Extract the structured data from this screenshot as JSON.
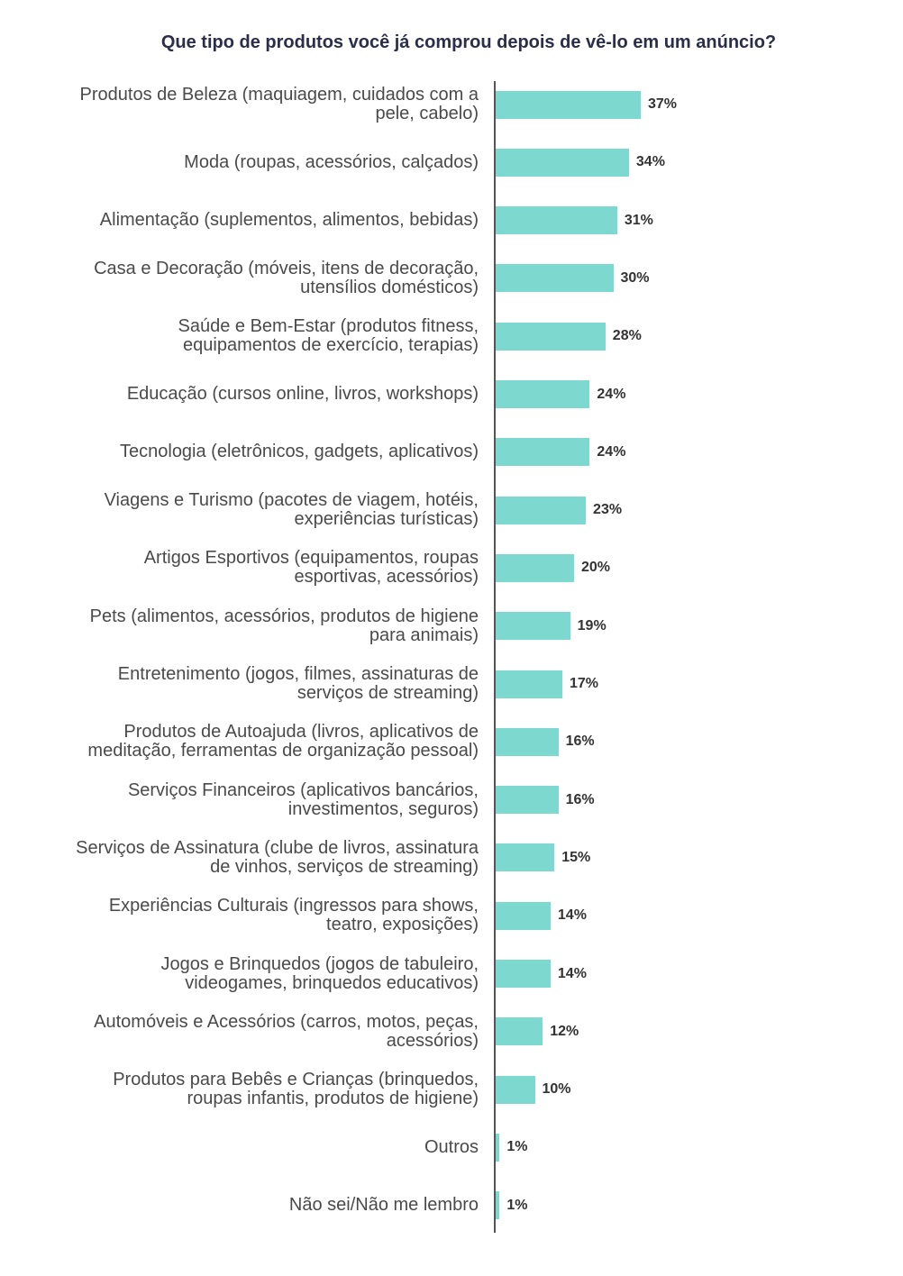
{
  "chart_data": {
    "type": "barh",
    "title": "Que tipo de produtos você já comprou depois de vê-lo em um anúncio?",
    "categories": [
      "Produtos de Beleza (maquiagem, cuidados com a pele, cabelo)",
      "Moda (roupas, acessórios, calçados)",
      "Alimentação (suplementos, alimentos, bebidas)",
      "Casa e Decoração (móveis, itens de decoração, utensílios domésticos)",
      "Saúde e Bem-Estar (produtos fitness, equipamentos de exercício, terapias)",
      "Educação (cursos online, livros, workshops)",
      "Tecnologia (eletrônicos, gadgets, aplicativos)",
      "Viagens e Turismo (pacotes de viagem, hotéis, experiências turísticas)",
      "Artigos Esportivos (equipamentos, roupas esportivas, acessórios)",
      "Pets (alimentos, acessórios, produtos de higiene para animais)",
      "Entretenimento (jogos, filmes, assinaturas de serviços de streaming)",
      "Produtos de Autoajuda (livros, aplicativos de meditação, ferramentas de organização pessoal)",
      "Serviços Financeiros (aplicativos bancários, investimentos, seguros)",
      "Serviços de Assinatura (clube de livros, assinatura de vinhos, serviços de streaming)",
      "Experiências Culturais (ingressos para shows, teatro, exposições)",
      "Jogos e Brinquedos (jogos de tabuleiro, videogames, brinquedos educativos)",
      "Automóveis e Acessórios (carros, motos, peças, acessórios)",
      "Produtos para Bebês e Crianças (brinquedos, roupas infantis, produtos de higiene)",
      "Outros",
      "Não sei/Não me lembro"
    ],
    "values": [
      37,
      34,
      31,
      30,
      28,
      24,
      24,
      23,
      20,
      19,
      17,
      16,
      16,
      15,
      14,
      14,
      12,
      10,
      1,
      1
    ],
    "value_labels": [
      "37%",
      "34%",
      "31%",
      "30%",
      "28%",
      "24%",
      "24%",
      "23%",
      "20%",
      "19%",
      "17%",
      "16%",
      "16%",
      "15%",
      "14%",
      "14%",
      "12%",
      "10%",
      "1%",
      "1%"
    ],
    "color": "#7dd8d0"
  }
}
